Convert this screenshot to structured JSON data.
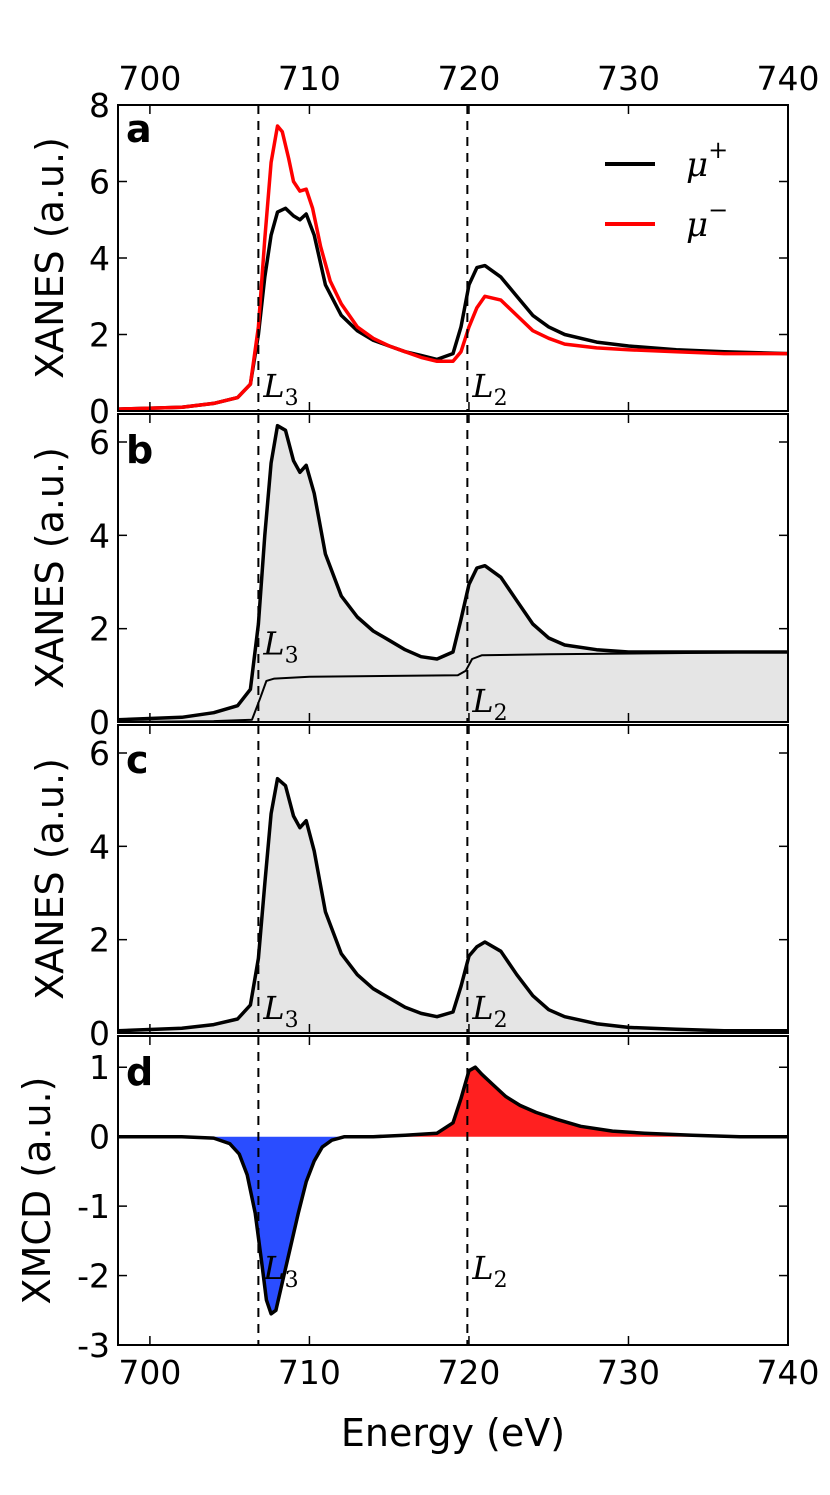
{
  "chart_data": [
    {
      "panel": "a",
      "type": "line",
      "ylabel": "XANES (a.u.)",
      "xlim": [
        698,
        740
      ],
      "ylim": [
        0,
        8
      ],
      "yticks": [
        0,
        2,
        4,
        6,
        8
      ],
      "top_xticks": [
        700,
        710,
        720,
        730,
        740
      ],
      "edges": [
        {
          "x": 706.8,
          "label": "L",
          "sub": "3"
        },
        {
          "x": 719.9,
          "label": "L",
          "sub": "2"
        }
      ],
      "legend": {
        "position": "top-right",
        "entries": [
          {
            "label": "μ",
            "sup": "+",
            "color": "#000000"
          },
          {
            "label": "μ",
            "sup": "−",
            "color": "#ff0000"
          }
        ]
      },
      "series": [
        {
          "name": "mu_plus",
          "color": "#000000",
          "x": [
            698,
            702,
            704,
            705.5,
            706.3,
            706.8,
            707.2,
            707.6,
            708,
            708.5,
            709,
            709.4,
            709.8,
            710.3,
            711,
            712,
            713,
            714,
            715,
            716,
            717,
            718,
            719,
            719.5,
            720,
            720.5,
            721,
            722,
            723,
            724,
            725,
            726,
            728,
            730,
            733,
            736,
            740
          ],
          "y": [
            0.05,
            0.1,
            0.2,
            0.35,
            0.7,
            2.0,
            3.5,
            4.6,
            5.2,
            5.3,
            5.1,
            5.0,
            5.15,
            4.6,
            3.3,
            2.5,
            2.1,
            1.85,
            1.7,
            1.55,
            1.45,
            1.35,
            1.5,
            2.2,
            3.3,
            3.75,
            3.8,
            3.5,
            3.0,
            2.5,
            2.2,
            2.0,
            1.8,
            1.7,
            1.6,
            1.55,
            1.5
          ]
        },
        {
          "name": "mu_minus",
          "color": "#ff0000",
          "x": [
            698,
            702,
            704,
            705.5,
            706.3,
            706.8,
            707.2,
            707.6,
            708,
            708.3,
            708.7,
            709,
            709.4,
            709.8,
            710.2,
            710.7,
            711.3,
            712,
            713,
            714,
            715,
            716,
            717,
            718,
            719,
            719.5,
            720,
            720.5,
            721,
            722,
            723,
            724,
            725,
            726,
            728,
            730,
            733,
            736,
            740
          ],
          "y": [
            0.05,
            0.1,
            0.2,
            0.35,
            0.7,
            2.2,
            4.5,
            6.5,
            7.45,
            7.3,
            6.6,
            6.0,
            5.75,
            5.8,
            5.3,
            4.3,
            3.4,
            2.8,
            2.2,
            1.9,
            1.7,
            1.55,
            1.4,
            1.3,
            1.3,
            1.55,
            2.2,
            2.7,
            3.0,
            2.9,
            2.5,
            2.1,
            1.9,
            1.75,
            1.65,
            1.6,
            1.55,
            1.5,
            1.5
          ]
        }
      ]
    },
    {
      "panel": "b",
      "type": "area",
      "ylabel": "XANES (a.u.)",
      "xlim": [
        698,
        740
      ],
      "ylim": [
        0,
        6.6
      ],
      "yticks": [
        0,
        2,
        4,
        6
      ],
      "edges": [
        {
          "x": 706.8,
          "label": "L",
          "sub": "3"
        },
        {
          "x": 719.9,
          "label": "L",
          "sub": "2"
        }
      ],
      "series": [
        {
          "name": "average",
          "color": "#000000",
          "fill": "#e5e5e5",
          "x": [
            698,
            702,
            704,
            705.5,
            706.3,
            706.8,
            707.2,
            707.6,
            708,
            708.5,
            709,
            709.4,
            709.8,
            710.3,
            711,
            712,
            713,
            714,
            715,
            716,
            717,
            718,
            719,
            719.5,
            720,
            720.5,
            721,
            722,
            723,
            724,
            725,
            726,
            728,
            730,
            733,
            736,
            740
          ],
          "y": [
            0.05,
            0.1,
            0.2,
            0.35,
            0.7,
            2.1,
            4.0,
            5.55,
            6.35,
            6.25,
            5.6,
            5.35,
            5.5,
            4.9,
            3.6,
            2.7,
            2.25,
            1.95,
            1.75,
            1.55,
            1.4,
            1.35,
            1.5,
            2.2,
            2.95,
            3.3,
            3.35,
            3.1,
            2.6,
            2.1,
            1.8,
            1.65,
            1.55,
            1.5,
            1.5,
            1.5,
            1.5
          ]
        },
        {
          "name": "step",
          "color": "#000000",
          "x": [
            698,
            704,
            706.4,
            706.9,
            707.3,
            707.8,
            710,
            719.3,
            719.8,
            720.2,
            720.8,
            725,
            740
          ],
          "y": [
            0.0,
            0.02,
            0.05,
            0.5,
            0.88,
            0.93,
            0.97,
            1.0,
            1.1,
            1.35,
            1.43,
            1.45,
            1.5
          ]
        }
      ]
    },
    {
      "panel": "c",
      "type": "area",
      "ylabel": "XANES (a.u.)",
      "xlim": [
        698,
        740
      ],
      "ylim": [
        0,
        6.6
      ],
      "yticks": [
        0,
        2,
        4,
        6
      ],
      "edges": [
        {
          "x": 706.8,
          "label": "L",
          "sub": "3"
        },
        {
          "x": 719.9,
          "label": "L",
          "sub": "2"
        }
      ],
      "series": [
        {
          "name": "step_subtracted",
          "color": "#000000",
          "fill": "#e5e5e5",
          "x": [
            698,
            702,
            704,
            705.5,
            706.3,
            706.8,
            707.2,
            707.6,
            708,
            708.5,
            709,
            709.4,
            709.8,
            710.3,
            711,
            712,
            713,
            714,
            715,
            716,
            717,
            718,
            719,
            719.5,
            720,
            720.5,
            721,
            722,
            723,
            724,
            725,
            726,
            728,
            730,
            733,
            736,
            740
          ],
          "y": [
            0.05,
            0.1,
            0.18,
            0.3,
            0.6,
            1.6,
            3.2,
            4.7,
            5.45,
            5.3,
            4.65,
            4.4,
            4.55,
            3.9,
            2.6,
            1.7,
            1.25,
            0.95,
            0.75,
            0.55,
            0.42,
            0.35,
            0.45,
            1.0,
            1.65,
            1.85,
            1.95,
            1.75,
            1.25,
            0.8,
            0.5,
            0.35,
            0.2,
            0.12,
            0.08,
            0.05,
            0.05
          ]
        }
      ]
    },
    {
      "panel": "d",
      "type": "area",
      "ylabel": "XMCD (a.u.)",
      "xlabel": "Energy (eV)",
      "xlim": [
        698,
        740
      ],
      "ylim": [
        -3,
        1.45
      ],
      "yticks": [
        -3,
        -2,
        -1,
        0,
        1
      ],
      "xticks": [
        700,
        710,
        720,
        730,
        740
      ],
      "edges": [
        {
          "x": 706.8,
          "label": "L",
          "sub": "3"
        },
        {
          "x": 719.9,
          "label": "L",
          "sub": "2"
        }
      ],
      "series": [
        {
          "name": "xmcd",
          "color": "#000000",
          "neg_fill": "#2a4dff",
          "pos_fill": "#ff2020",
          "x": [
            698,
            700,
            702,
            704,
            705,
            705.6,
            706.1,
            706.6,
            707,
            707.3,
            707.6,
            707.9,
            708.3,
            708.8,
            709.3,
            709.8,
            710.3,
            710.8,
            711.4,
            712.2,
            713,
            714,
            716,
            718,
            719,
            719.5,
            720,
            720.4,
            720.8,
            721.5,
            722.3,
            723.2,
            724.2,
            725.5,
            727,
            729,
            731,
            734,
            737,
            740
          ],
          "y": [
            0.0,
            0.0,
            0.0,
            -0.02,
            -0.1,
            -0.25,
            -0.55,
            -1.1,
            -1.8,
            -2.35,
            -2.55,
            -2.5,
            -2.1,
            -1.6,
            -1.1,
            -0.65,
            -0.35,
            -0.15,
            -0.05,
            0.0,
            0.0,
            0.0,
            0.02,
            0.05,
            0.2,
            0.55,
            0.95,
            1.0,
            0.9,
            0.75,
            0.58,
            0.45,
            0.35,
            0.25,
            0.15,
            0.08,
            0.05,
            0.02,
            0.0,
            0.0
          ]
        }
      ]
    }
  ]
}
